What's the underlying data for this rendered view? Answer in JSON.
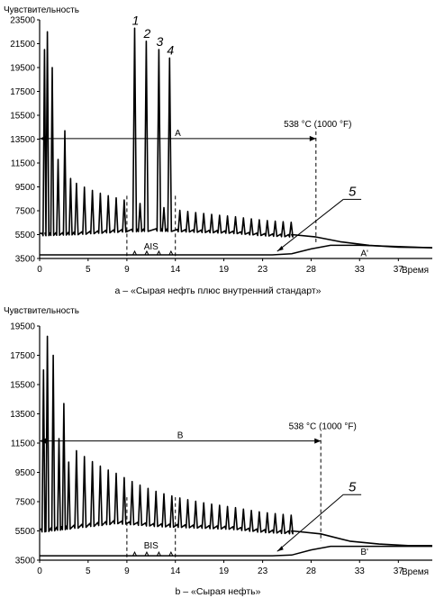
{
  "chart_data": [
    {
      "type": "line",
      "ylabel": "Чувствительность",
      "xlabel": "Время",
      "caption": "a – «Сырая нефть плюс внутренний стандарт»",
      "y_ticks": [
        "23500",
        "21500",
        "19500",
        "17500",
        "15500",
        "13500",
        "11500",
        "9500",
        "7500",
        "5500",
        "3500"
      ],
      "x_ticks": [
        "0",
        "5",
        "9",
        "14",
        "19",
        "23",
        "28",
        "33",
        "37"
      ],
      "ylim": [
        3500,
        23500
      ],
      "xlim": [
        0,
        40.5
      ],
      "temp_label": "538 °C (1000 °F)",
      "temp_time": 28.5,
      "range_label": "A",
      "baseline_label": "AIS",
      "baseline_window": [
        9,
        14
      ],
      "rise_label": "A'",
      "peak_labels": [
        {
          "label": "1",
          "x": 9.8,
          "y": 22800
        },
        {
          "label": "2",
          "x": 11.0,
          "y": 21700
        },
        {
          "label": "3",
          "x": 12.3,
          "y": 21000
        },
        {
          "label": "4",
          "x": 13.4,
          "y": 20300
        }
      ],
      "pointer_label": "5",
      "standard_peaks": [
        {
          "x": 9.8,
          "y": 22800
        },
        {
          "x": 11.0,
          "y": 21700
        },
        {
          "x": 12.3,
          "y": 21000
        },
        {
          "x": 13.4,
          "y": 20300
        }
      ],
      "early_peaks": [
        {
          "x": 0.5,
          "y": 21000
        },
        {
          "x": 0.8,
          "y": 22500
        },
        {
          "x": 1.3,
          "y": 19500
        },
        {
          "x": 1.9,
          "y": 11800
        },
        {
          "x": 2.6,
          "y": 14200
        },
        {
          "x": 3.2,
          "y": 10200
        }
      ],
      "series": [
        {
          "label": "A",
          "x": [
            0,
            4,
            8,
            12,
            16,
            20,
            23,
            26,
            28.5,
            31,
            34,
            37,
            40.5
          ],
          "y": [
            5600,
            5700,
            5900,
            6000,
            5900,
            5800,
            5600,
            5500,
            5300,
            4900,
            4600,
            4450,
            4400
          ]
        },
        {
          "label": "A'",
          "x": [
            0,
            10,
            20,
            24,
            26,
            28,
            30,
            33,
            37,
            40.5
          ],
          "y": [
            3800,
            3800,
            3800,
            3800,
            3900,
            4300,
            4600,
            4600,
            4500,
            4400
          ]
        }
      ]
    },
    {
      "type": "line",
      "ylabel": "Чувствительность",
      "xlabel": "Время",
      "caption": "b – «Сырая нефть»",
      "y_ticks": [
        "19500",
        "17500",
        "15500",
        "13500",
        "11500",
        "9500",
        "7500",
        "5500",
        "3500"
      ],
      "x_ticks": [
        "0",
        "5",
        "9",
        "14",
        "19",
        "23",
        "28",
        "33",
        "37"
      ],
      "ylim": [
        3500,
        19500
      ],
      "xlim": [
        0,
        40.5
      ],
      "temp_label": "538 °C (1000 °F)",
      "temp_time": 29,
      "range_label": "B",
      "baseline_label": "BIS",
      "baseline_window": [
        9,
        14
      ],
      "rise_label": "B'",
      "pointer_label": "5",
      "early_peaks": [
        {
          "x": 0.4,
          "y": 16500
        },
        {
          "x": 0.8,
          "y": 18800
        },
        {
          "x": 1.4,
          "y": 17500
        },
        {
          "x": 2.0,
          "y": 11800
        },
        {
          "x": 2.5,
          "y": 14200
        },
        {
          "x": 3.0,
          "y": 10200
        }
      ],
      "series": [
        {
          "label": "B",
          "x": [
            0,
            4,
            8,
            12,
            16,
            20,
            23,
            26,
            29,
            32,
            35,
            38,
            40.5
          ],
          "y": [
            5600,
            5900,
            6200,
            6000,
            5900,
            5800,
            5600,
            5500,
            5300,
            4800,
            4600,
            4500,
            4500
          ]
        },
        {
          "label": "B'",
          "x": [
            0,
            10,
            20,
            24,
            26,
            28,
            30,
            33,
            37,
            40.5
          ],
          "y": [
            3800,
            3800,
            3800,
            3800,
            3850,
            4200,
            4450,
            4450,
            4450,
            4450
          ]
        }
      ]
    }
  ]
}
